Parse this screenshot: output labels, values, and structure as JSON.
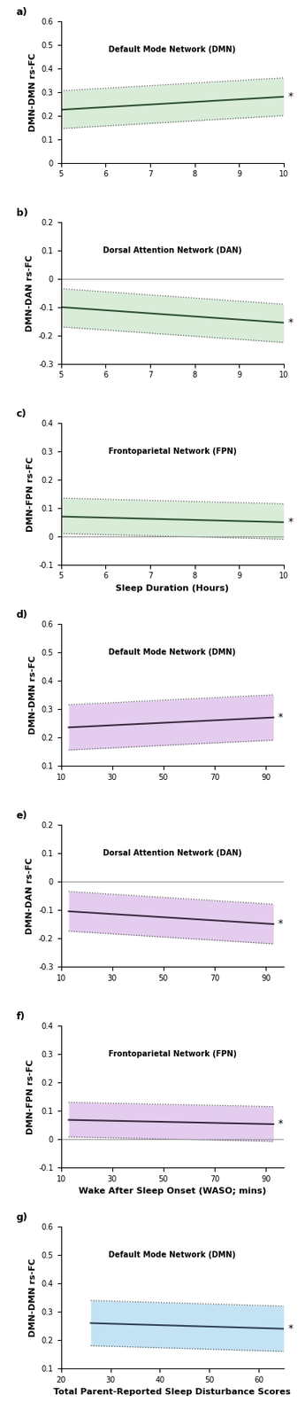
{
  "chart_data": [
    {
      "type": "line",
      "title": "a)",
      "ylabel": "DMN-DMN rs-FC",
      "annotations": [
        "Default Mode Network (DMN)",
        "*"
      ],
      "x": [
        5,
        10
      ],
      "values": [
        0.225,
        0.28
      ],
      "upper": [
        0.305,
        0.36
      ],
      "lower": [
        0.145,
        0.2
      ],
      "color": "#2f4f2f",
      "band_color": "#cfe8cf",
      "line_style": "solid",
      "grid": false,
      "xlim": [
        5,
        10
      ],
      "xticks": [
        5,
        6,
        7,
        8,
        9,
        10
      ],
      "ylim": [
        0,
        0.6
      ],
      "yticks": [
        0,
        0.1,
        0.2,
        0.3,
        0.4,
        0.5,
        0.6
      ]
    },
    {
      "type": "line",
      "title": "b)",
      "ylabel": "DMN-DAN rs-FC",
      "annotations": [
        "Dorsal Attention Network (DAN)",
        "*"
      ],
      "x": [
        5,
        10
      ],
      "values": [
        -0.1,
        -0.155
      ],
      "upper": [
        -0.035,
        -0.09
      ],
      "lower": [
        -0.17,
        -0.225
      ],
      "color": "#2f4f2f",
      "band_color": "#cfe8cf",
      "line_style": "solid",
      "grid": false,
      "xlim": [
        5,
        10
      ],
      "xticks": [
        5,
        6,
        7,
        8,
        9,
        10
      ],
      "ylim": [
        -0.3,
        0.2
      ],
      "yticks": [
        -0.3,
        -0.2,
        -0.1,
        0,
        0.1,
        0.2
      ]
    },
    {
      "type": "line",
      "title": "c)",
      "ylabel": "DMN-FPN rs-FC",
      "xlabel": "Sleep Duration (Hours)",
      "annotations": [
        "Frontoparietal Network (FPN)",
        "*"
      ],
      "x": [
        5,
        10
      ],
      "values": [
        0.07,
        0.05
      ],
      "upper": [
        0.135,
        0.115
      ],
      "lower": [
        0.01,
        -0.01
      ],
      "color": "#2f4f2f",
      "band_color": "#cfe8cf",
      "line_style": "solid",
      "grid": false,
      "xlim": [
        5,
        10
      ],
      "xticks": [
        5,
        6,
        7,
        8,
        9,
        10
      ],
      "ylim": [
        -0.1,
        0.4
      ],
      "yticks": [
        -0.1,
        0,
        0.1,
        0.2,
        0.3,
        0.4
      ]
    },
    {
      "type": "line",
      "title": "d)",
      "ylabel": "DMN-DMN rs-FC",
      "annotations": [
        "Default Mode Network (DMN)",
        "*"
      ],
      "x": [
        13,
        93
      ],
      "values": [
        0.235,
        0.27
      ],
      "upper": [
        0.315,
        0.35
      ],
      "lower": [
        0.155,
        0.19
      ],
      "color": "#3a2a40",
      "band_color": "#dcc0ea",
      "line_style": "solid",
      "grid": false,
      "xlim": [
        10,
        97
      ],
      "xticks": [
        10,
        30,
        50,
        70,
        90
      ],
      "ylim": [
        0.1,
        0.6
      ],
      "yticks": [
        0.1,
        0.2,
        0.3,
        0.4,
        0.5,
        0.6
      ]
    },
    {
      "type": "line",
      "title": "e)",
      "ylabel": "DMN-DAN rs-FC",
      "annotations": [
        "Dorsal Attention Network (DAN)",
        "*"
      ],
      "x": [
        13,
        93
      ],
      "values": [
        -0.105,
        -0.15
      ],
      "upper": [
        -0.035,
        -0.08
      ],
      "lower": [
        -0.175,
        -0.22
      ],
      "color": "#3a2a40",
      "band_color": "#dcc0ea",
      "line_style": "solid",
      "grid": false,
      "xlim": [
        10,
        97
      ],
      "xticks": [
        10,
        30,
        50,
        70,
        90
      ],
      "ylim": [
        -0.3,
        0.2
      ],
      "yticks": [
        -0.3,
        -0.2,
        -0.1,
        0,
        0.1,
        0.2
      ]
    },
    {
      "type": "line",
      "title": "f)",
      "ylabel": "DMN-FPN rs-FC",
      "xlabel": "Wake After Sleep Onset (WASO; mins)",
      "annotations": [
        "Frontoparietal Network (FPN)",
        "*"
      ],
      "x": [
        13,
        93
      ],
      "values": [
        0.068,
        0.053
      ],
      "upper": [
        0.13,
        0.115
      ],
      "lower": [
        0.008,
        -0.008
      ],
      "color": "#3a2a40",
      "band_color": "#dcc0ea",
      "line_style": "solid",
      "grid": false,
      "xlim": [
        10,
        97
      ],
      "xticks": [
        10,
        30,
        50,
        70,
        90
      ],
      "ylim": [
        -0.1,
        0.4
      ],
      "yticks": [
        -0.1,
        0,
        0.1,
        0.2,
        0.3,
        0.4
      ]
    },
    {
      "type": "line",
      "title": "g)",
      "ylabel": "DMN-DMN rs-FC",
      "xlabel": "Total Parent-Reported Sleep Disturbance Scores",
      "annotations": [
        "Default Mode Network (DMN)",
        "*"
      ],
      "x": [
        26,
        65
      ],
      "values": [
        0.26,
        0.24
      ],
      "upper": [
        0.34,
        0.32
      ],
      "lower": [
        0.18,
        0.16
      ],
      "color": "#2f4050",
      "band_color": "#b5dcf2",
      "line_style": "solid",
      "grid": false,
      "xlim": [
        20,
        65
      ],
      "xticks": [
        20,
        30,
        40,
        50,
        60
      ],
      "ylim": [
        0.1,
        0.6
      ],
      "yticks": [
        0.1,
        0.2,
        0.3,
        0.4,
        0.5,
        0.6
      ]
    }
  ]
}
